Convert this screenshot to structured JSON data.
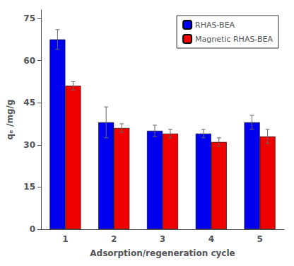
{
  "chart_data": {
    "type": "bar",
    "categories": [
      "1",
      "2",
      "3",
      "4",
      "5"
    ],
    "series": [
      {
        "name": "RHAS-BEA",
        "color": "#0000EE",
        "values": [
          67.5,
          38.0,
          35.0,
          34.0,
          38.0
        ],
        "errors": [
          3.5,
          5.5,
          2.0,
          1.5,
          2.5
        ]
      },
      {
        "name": "Magnetic RHAS-BEA",
        "color": "#EE0000",
        "values": [
          51.0,
          36.0,
          34.0,
          31.0,
          33.0
        ],
        "errors": [
          1.5,
          1.5,
          1.5,
          1.5,
          2.5
        ]
      }
    ],
    "xlabel": "Adsorption/regeneration cycle",
    "ylabel": "qₑ /mg/g",
    "ylim": [
      0,
      78
    ],
    "yticks": [
      0,
      15,
      30,
      45,
      60,
      75
    ],
    "legend": "upper right",
    "grid": false
  }
}
